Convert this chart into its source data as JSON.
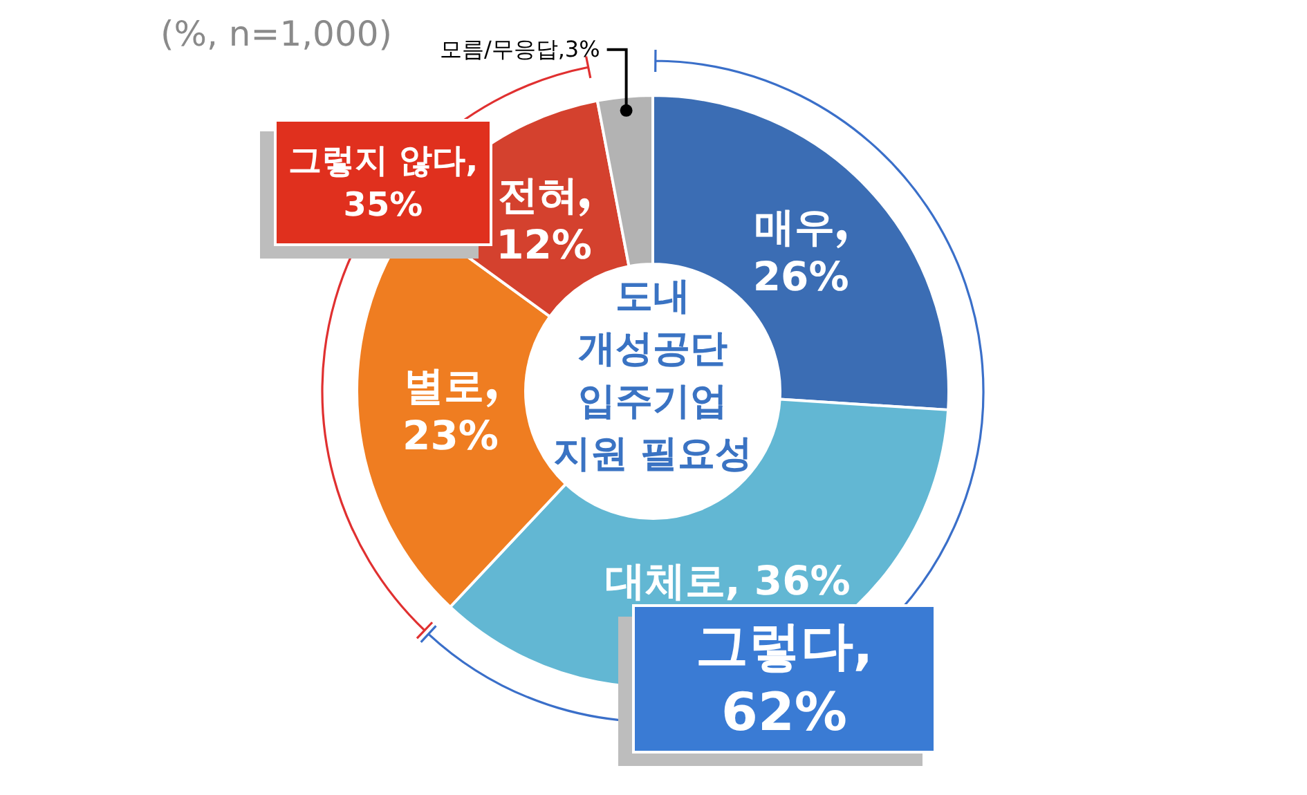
{
  "chart_data": {
    "type": "donut",
    "title": "도내 개성공단 입주기업 지원 필요성",
    "subtitle": "(%, n=1,000)",
    "categories": [
      "매우",
      "대체로",
      "별로",
      "전혀",
      "모름/무응답"
    ],
    "values": [
      26,
      36,
      23,
      12,
      3
    ],
    "colors": [
      "#3b6db4",
      "#62b7d3",
      "#ef7d21",
      "#d4412e",
      "#b3b3b3"
    ],
    "value_labels": [
      "26%",
      "36%",
      "23%",
      "12%",
      "3%"
    ],
    "annotations": [
      "그렇다, 62%",
      "그렇지 않다, 35%"
    ],
    "legend": false
  }
}
